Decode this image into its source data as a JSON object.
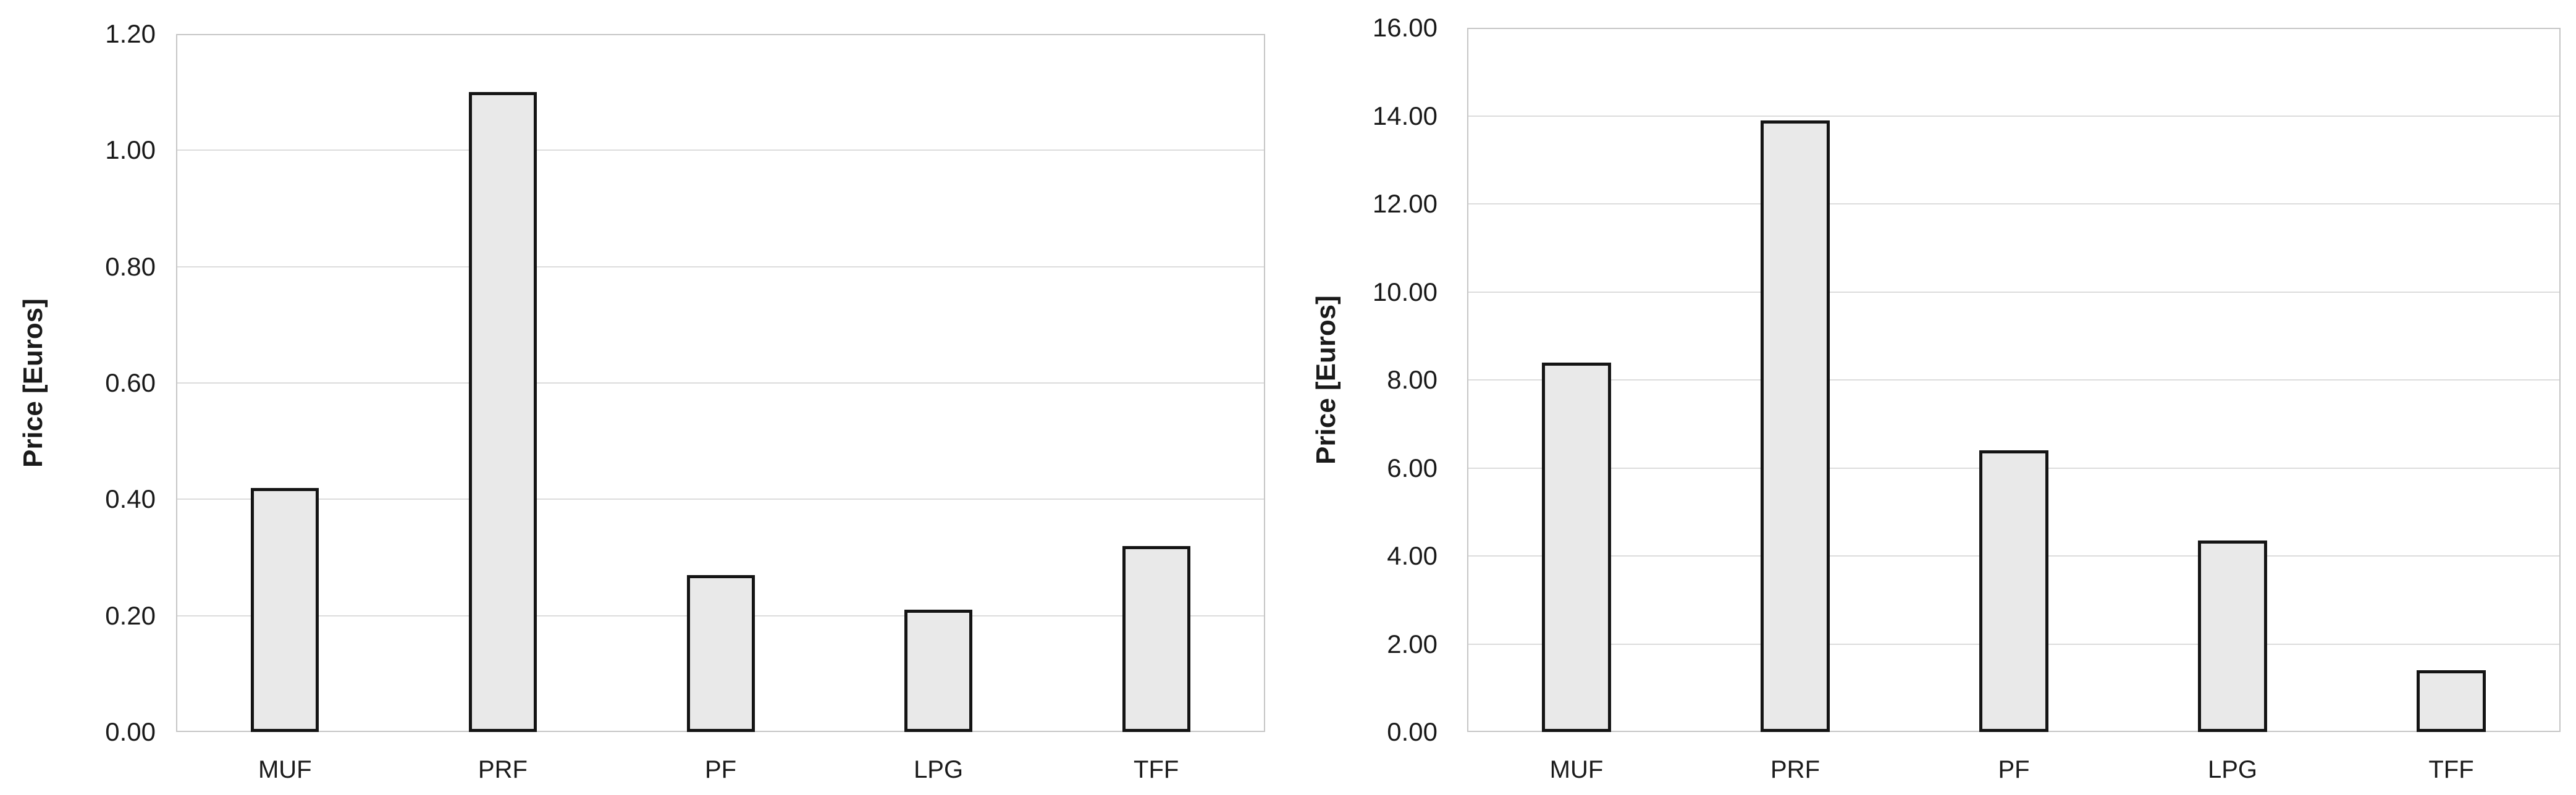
{
  "figure": {
    "background": "#ffffff"
  },
  "chart_data": [
    {
      "id": "adhesive-price-chart-left",
      "type": "bar",
      "title": "",
      "xlabel": "",
      "ylabel": "Price [Euros]",
      "categories": [
        "MUF",
        "PRF",
        "PF",
        "LPG",
        "TFF"
      ],
      "values": [
        0.42,
        1.1,
        0.27,
        0.21,
        0.32
      ],
      "ylim": [
        0,
        1.2
      ],
      "yticks": [
        0,
        0.2,
        0.4,
        0.6,
        0.8,
        1.0,
        1.2
      ],
      "ytick_labels": [
        "0.00",
        "0.20",
        "0.40",
        "0.60",
        "0.80",
        "1.00",
        "1.20"
      ],
      "grid": true,
      "legend": false,
      "colors": {
        "bar_fill": "#e9e9e9",
        "bar_border": "#141414",
        "gridline": "#dcdcdc",
        "plot_border": "#c6c6c6",
        "text": "#1a1a1a"
      }
    },
    {
      "id": "adhesive-price-chart-right",
      "type": "bar",
      "title": "",
      "xlabel": "",
      "ylabel": "Price [Euros]",
      "categories": [
        "MUF",
        "PRF",
        "PF",
        "LPG",
        "TFF"
      ],
      "values": [
        8.4,
        13.9,
        6.4,
        4.35,
        1.4
      ],
      "ylim": [
        0,
        16.0
      ],
      "yticks": [
        0,
        2.0,
        4.0,
        6.0,
        8.0,
        10.0,
        12.0,
        14.0,
        16.0
      ],
      "ytick_labels": [
        "0.00",
        "2.00",
        "4.00",
        "6.00",
        "8.00",
        "10.00",
        "12.00",
        "14.00",
        "16.00"
      ],
      "grid": true,
      "legend": false,
      "colors": {
        "bar_fill": "#e9e9e9",
        "bar_border": "#141414",
        "gridline": "#dcdcdc",
        "plot_border": "#c6c6c6",
        "text": "#1a1a1a"
      }
    }
  ]
}
